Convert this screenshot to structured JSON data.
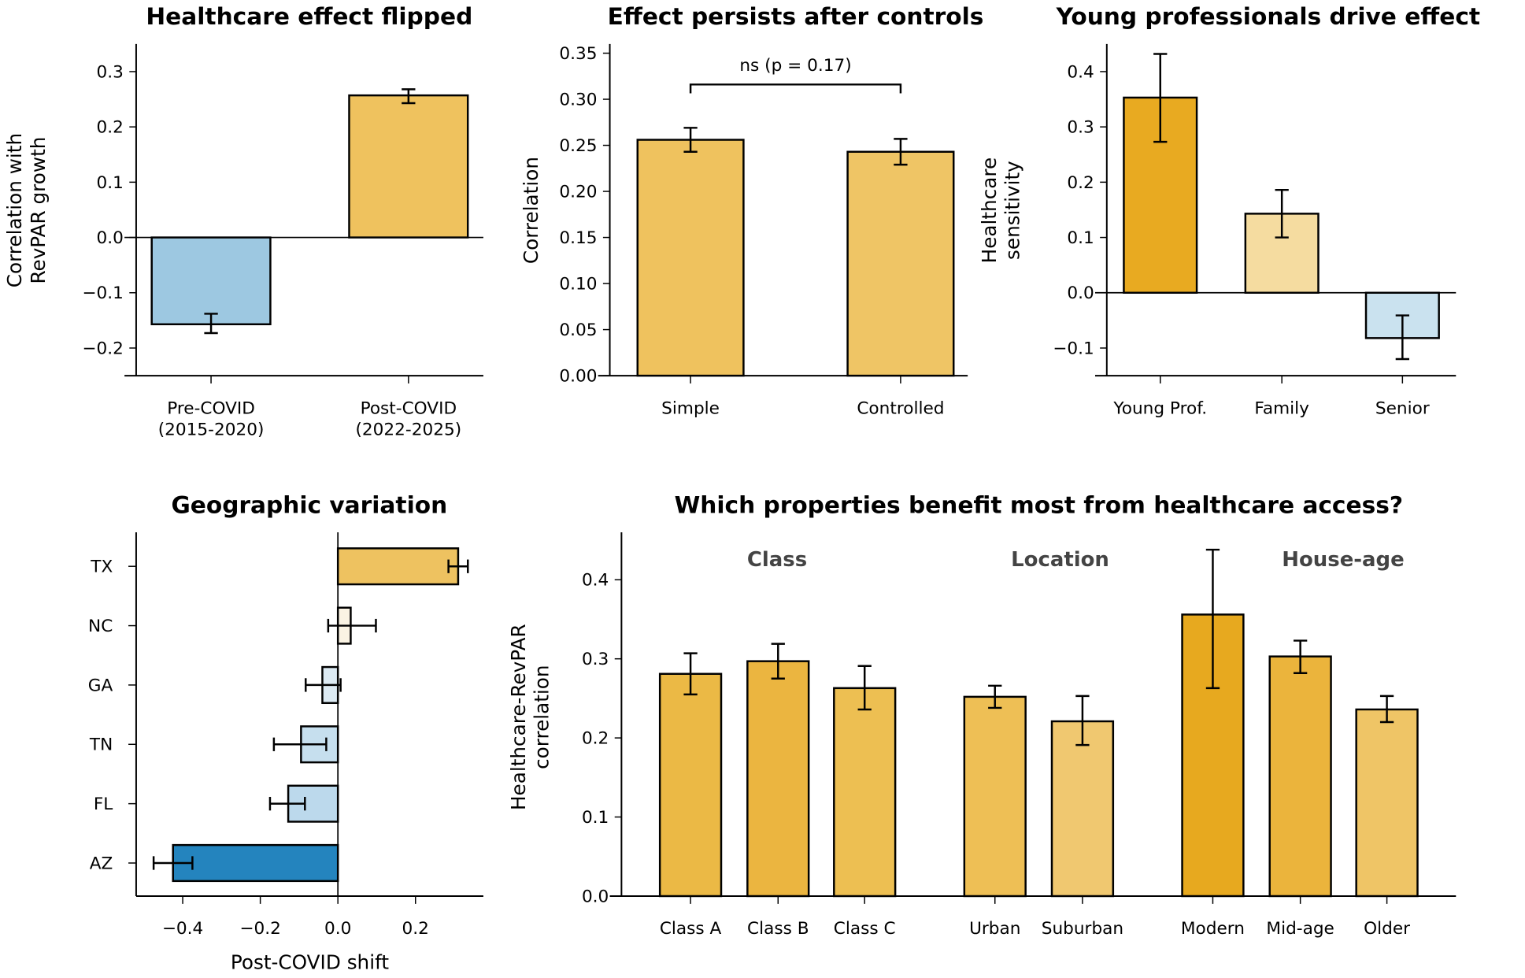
{
  "chart_data": [
    {
      "type": "bar",
      "orientation": "vertical",
      "title": "Healthcare effect flipped",
      "ylabel": [
        "Correlation with",
        "RevPAR growth"
      ],
      "categories": [
        [
          "Pre-COVID",
          "(2015-2020)"
        ],
        [
          "Post-COVID",
          "(2022-2025)"
        ]
      ],
      "values": [
        -0.157,
        0.257
      ],
      "error_ranges": [
        [
          -0.173,
          -0.138
        ],
        [
          0.243,
          0.268
        ]
      ],
      "colors": [
        "#9DC8E1",
        "#EFC25E"
      ],
      "ylim": [
        -0.25,
        0.35
      ],
      "yticks": [
        "-0.2",
        "-0.1",
        "0.0",
        "0.1",
        "0.2",
        "0.3"
      ],
      "zero_line": true
    },
    {
      "type": "bar",
      "orientation": "vertical",
      "title": "Effect persists after controls",
      "ylabel": [
        "Correlation"
      ],
      "categories": [
        [
          "Simple"
        ],
        [
          "Controlled"
        ]
      ],
      "values": [
        0.256,
        0.243
      ],
      "error_ranges": [
        [
          0.243,
          0.269
        ],
        [
          0.229,
          0.257
        ]
      ],
      "colors": [
        "#EFC25E",
        "#EFC565"
      ],
      "ylim": [
        0,
        0.36
      ],
      "yticks": [
        "0.00",
        "0.05",
        "0.10",
        "0.15",
        "0.20",
        "0.25",
        "0.30",
        "0.35"
      ],
      "annotation": {
        "text": "ns (p = 0.17)",
        "bracket_y": 0.316
      }
    },
    {
      "type": "bar",
      "orientation": "vertical",
      "title": "Young professionals drive effect",
      "ylabel": [
        "Healthcare",
        "sensitivity"
      ],
      "categories": [
        [
          "Young Prof."
        ],
        [
          "Family"
        ],
        [
          "Senior"
        ]
      ],
      "values": [
        0.353,
        0.143,
        -0.082
      ],
      "error_ranges": [
        [
          0.273,
          0.432
        ],
        [
          0.1,
          0.186
        ],
        [
          -0.12,
          -0.041
        ]
      ],
      "colors": [
        "#E8AA21",
        "#F5DCA0",
        "#CAE2EF"
      ],
      "ylim": [
        -0.15,
        0.45
      ],
      "yticks": [
        "-0.1",
        "0.0",
        "0.1",
        "0.2",
        "0.3",
        "0.4"
      ],
      "zero_line": true
    },
    {
      "type": "bar",
      "orientation": "horizontal",
      "title": "Geographic variation",
      "xlabel": "Post-COVID shift",
      "categories": [
        "TX",
        "NC",
        "GA",
        "TN",
        "FL",
        "AZ"
      ],
      "values": [
        0.31,
        0.033,
        -0.04,
        -0.095,
        -0.128,
        -0.425
      ],
      "error_ranges": [
        [
          0.285,
          0.335
        ],
        [
          -0.025,
          0.098
        ],
        [
          -0.083,
          0.007
        ],
        [
          -0.165,
          -0.03
        ],
        [
          -0.175,
          -0.085
        ],
        [
          -0.475,
          -0.375
        ]
      ],
      "colors": [
        "#EEC260",
        "#FAF3E3",
        "#DCEAF3",
        "#C6DFEE",
        "#BCD9EC",
        "#2484BE"
      ],
      "xlim": [
        -0.52,
        0.375
      ],
      "xticks": [
        "−0.4",
        "−0.2",
        "0.0",
        "0.2"
      ],
      "zero_line": true
    },
    {
      "type": "bar",
      "orientation": "vertical",
      "title": "Which properties benefit most from healthcare access?",
      "ylabel": [
        "Healthcare-RevPAR",
        "correlation"
      ],
      "groups": [
        "Class",
        "Location",
        "House-age"
      ],
      "categories": [
        [
          "Class A"
        ],
        [
          "Class B"
        ],
        [
          "Class C"
        ],
        [
          "Urban"
        ],
        [
          "Suburban"
        ],
        [
          "Modern"
        ],
        [
          "Mid-age"
        ],
        [
          "Older"
        ]
      ],
      "values": [
        0.281,
        0.297,
        0.263,
        0.252,
        0.221,
        0.356,
        0.303,
        0.236
      ],
      "error_ranges": [
        [
          0.255,
          0.307
        ],
        [
          0.275,
          0.319
        ],
        [
          0.236,
          0.291
        ],
        [
          0.238,
          0.266
        ],
        [
          0.191,
          0.253
        ],
        [
          0.263,
          0.438
        ],
        [
          0.282,
          0.323
        ],
        [
          0.22,
          0.253
        ]
      ],
      "colors": [
        "#EBB945",
        "#EBB540",
        "#EDBF52",
        "#EEBF55",
        "#F0C870",
        "#E7A91F",
        "#EBB43C",
        "#EFC566"
      ],
      "ylim": [
        0,
        0.46
      ],
      "yticks": [
        "0.0",
        "0.1",
        "0.2",
        "0.3",
        "0.4"
      ]
    }
  ]
}
